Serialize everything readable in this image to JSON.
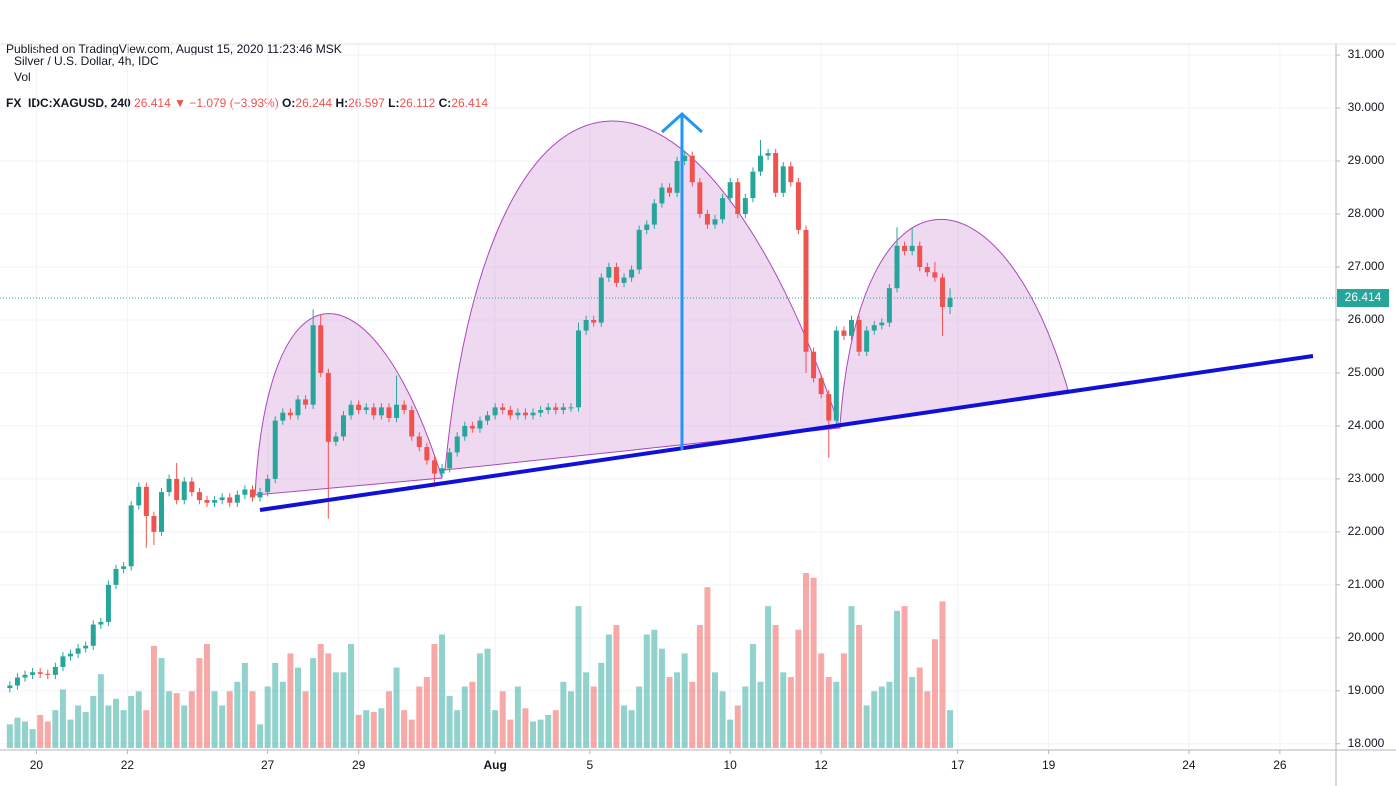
{
  "chart_data": {
    "type": "candlestick",
    "published": "Published on TradingView.com, August 15, 2020 11:23:46 MSK",
    "symbol": "FX_IDC:XAGUSD, 240",
    "change": "▼ −1.079 (−3.93%)",
    "ohlc_labels": [
      "O:",
      "H:",
      "L:",
      "C:"
    ],
    "title": "Silver / U.S. Dollar, 4h, IDC",
    "volume_label": "Vol",
    "up_color": "#26a69a",
    "down_color": "#ef5350",
    "grid": true,
    "xlim": [
      -1.3,
      174.9
    ],
    "xticks": [
      {
        "value": 3.5,
        "label": "20"
      },
      {
        "value": 15.5,
        "label": "22"
      },
      {
        "value": 34,
        "label": "27"
      },
      {
        "value": 46,
        "label": "29"
      },
      {
        "value": 64,
        "label": "Aug"
      },
      {
        "value": 76.5,
        "label": "5"
      },
      {
        "value": 95,
        "label": "10"
      },
      {
        "value": 107,
        "label": "12"
      },
      {
        "value": 125,
        "label": "17"
      },
      {
        "value": 137,
        "label": "19"
      },
      {
        "value": 155.5,
        "label": "24"
      },
      {
        "value": 167.5,
        "label": "26"
      }
    ],
    "ylim": [
      17.92,
      31.19
    ],
    "yticks": [
      {
        "value": 18,
        "label": "18.000"
      },
      {
        "value": 19,
        "label": "19.000"
      },
      {
        "value": 20,
        "label": "20.000"
      },
      {
        "value": 21,
        "label": "21.000"
      },
      {
        "value": 22,
        "label": "22.000"
      },
      {
        "value": 23,
        "label": "23.000"
      },
      {
        "value": 24,
        "label": "24.000"
      },
      {
        "value": 25,
        "label": "25.000"
      },
      {
        "value": 26,
        "label": "26.000"
      },
      {
        "value": 27,
        "label": "27.000"
      },
      {
        "value": 28,
        "label": "28.000"
      },
      {
        "value": 29,
        "label": "29.000"
      },
      {
        "value": 30,
        "label": "30.000"
      },
      {
        "value": 31,
        "label": "31.000"
      }
    ],
    "open": [
      19.05,
      19.1,
      19.25,
      19.3,
      19.35,
      19.32,
      19.3,
      19.45,
      19.65,
      19.7,
      19.8,
      19.85,
      20.25,
      20.3,
      21.0,
      21.3,
      21.35,
      22.5,
      22.85,
      22.3,
      22.0,
      22.75,
      23.0,
      22.6,
      22.95,
      22.75,
      22.6,
      22.55,
      22.6,
      22.65,
      22.55,
      22.7,
      22.8,
      22.65,
      22.75,
      23.0,
      24.1,
      24.25,
      24.2,
      24.5,
      24.4,
      25.9,
      25.0,
      23.7,
      23.8,
      24.2,
      24.4,
      24.3,
      24.35,
      24.2,
      24.35,
      24.15,
      24.4,
      24.3,
      23.8,
      23.6,
      23.35,
      23.1,
      23.2,
      23.5,
      23.8,
      24.0,
      23.95,
      24.1,
      24.2,
      24.35,
      24.3,
      24.2,
      24.25,
      24.2,
      24.25,
      24.3,
      24.35,
      24.3,
      24.35,
      24.35,
      25.8,
      26.0,
      25.95,
      26.8,
      27.0,
      26.7,
      26.8,
      26.95,
      27.7,
      27.8,
      28.2,
      28.5,
      28.4,
      29.0,
      29.1,
      28.6,
      28.0,
      27.8,
      27.9,
      28.3,
      28.6,
      28.0,
      28.3,
      28.8,
      29.1,
      29.15,
      28.4,
      28.9,
      28.6,
      27.7,
      25.4,
      24.9,
      24.6,
      24.1,
      25.8,
      25.7,
      26.0,
      25.4,
      25.8,
      25.9,
      25.95,
      26.6,
      27.4,
      27.3,
      27.4,
      27.0,
      26.9,
      26.8,
      26.244
    ],
    "high": [
      19.18,
      19.33,
      19.38,
      19.43,
      19.43,
      19.4,
      19.53,
      19.73,
      19.78,
      19.88,
      19.93,
      20.33,
      20.38,
      21.08,
      21.38,
      21.43,
      22.58,
      22.93,
      22.93,
      22.38,
      22.83,
      23.08,
      23.3,
      23.03,
      23.03,
      22.83,
      22.68,
      22.68,
      22.73,
      22.73,
      22.78,
      22.88,
      22.88,
      22.83,
      23.08,
      24.18,
      24.33,
      24.33,
      24.58,
      24.58,
      26.2,
      26.1,
      25.08,
      23.88,
      24.28,
      24.48,
      24.48,
      24.43,
      24.43,
      24.43,
      24.43,
      24.95,
      24.48,
      24.38,
      23.88,
      23.68,
      23.43,
      23.28,
      23.58,
      23.88,
      24.08,
      24.08,
      24.18,
      24.28,
      24.43,
      24.43,
      24.38,
      24.33,
      24.33,
      24.33,
      24.38,
      24.43,
      24.43,
      24.43,
      24.43,
      25.95,
      26.08,
      26.08,
      26.88,
      27.08,
      27.08,
      26.88,
      27.03,
      27.78,
      27.88,
      28.28,
      28.58,
      28.58,
      29.08,
      29.2,
      29.18,
      28.68,
      28.08,
      27.98,
      28.38,
      28.68,
      28.68,
      28.38,
      28.88,
      29.4,
      29.23,
      29.23,
      28.98,
      28.98,
      28.68,
      27.78,
      25.48,
      24.98,
      24.68,
      25.88,
      25.88,
      26.08,
      26.08,
      25.88,
      25.98,
      26.03,
      26.68,
      27.75,
      27.48,
      27.75,
      27.48,
      27.08,
      27.1,
      26.88,
      26.597
    ],
    "low": [
      18.97,
      19.02,
      19.17,
      19.22,
      19.24,
      19.22,
      19.22,
      19.37,
      19.57,
      19.62,
      19.72,
      19.77,
      20.17,
      20.22,
      20.92,
      21.22,
      21.27,
      22.42,
      21.7,
      21.75,
      21.92,
      22.67,
      22.52,
      22.52,
      22.67,
      22.52,
      22.47,
      22.47,
      22.52,
      22.47,
      22.47,
      22.62,
      22.57,
      22.57,
      22.67,
      22.92,
      24.02,
      24.12,
      24.12,
      24.32,
      24.32,
      24.92,
      22.25,
      23.62,
      23.72,
      24.12,
      24.22,
      24.22,
      24.12,
      24.12,
      24.07,
      24.07,
      24.22,
      23.72,
      23.52,
      23.27,
      22.85,
      23.02,
      23.12,
      23.42,
      23.72,
      23.87,
      23.87,
      24.02,
      24.12,
      24.22,
      24.12,
      24.12,
      24.12,
      24.12,
      24.17,
      24.22,
      24.22,
      24.22,
      24.27,
      24.27,
      25.72,
      25.87,
      25.87,
      26.72,
      26.62,
      26.62,
      26.72,
      26.87,
      27.62,
      27.72,
      28.12,
      28.32,
      28.32,
      28.92,
      28.52,
      27.92,
      27.72,
      27.72,
      27.82,
      28.22,
      27.92,
      27.92,
      28.22,
      28.72,
      29.02,
      28.32,
      28.32,
      28.52,
      27.62,
      25.0,
      24.82,
      24.52,
      23.4,
      24.02,
      25.62,
      25.62,
      25.32,
      25.32,
      25.72,
      25.82,
      25.87,
      26.52,
      27.22,
      27.22,
      26.92,
      26.82,
      26.72,
      25.7,
      26.112
    ],
    "close": [
      19.1,
      19.25,
      19.3,
      19.35,
      19.32,
      19.3,
      19.45,
      19.65,
      19.7,
      19.8,
      19.85,
      20.25,
      20.3,
      21.0,
      21.3,
      21.35,
      22.5,
      22.85,
      22.3,
      22.0,
      22.75,
      23.0,
      22.6,
      22.95,
      22.75,
      22.6,
      22.55,
      22.6,
      22.65,
      22.55,
      22.7,
      22.8,
      22.65,
      22.75,
      23.0,
      24.1,
      24.25,
      24.2,
      24.5,
      24.4,
      25.9,
      25.0,
      23.7,
      23.8,
      24.2,
      24.4,
      24.3,
      24.35,
      24.2,
      24.35,
      24.15,
      24.4,
      24.3,
      23.8,
      23.6,
      23.35,
      23.1,
      23.2,
      23.5,
      23.8,
      24.0,
      23.95,
      24.1,
      24.2,
      24.35,
      24.3,
      24.2,
      24.25,
      24.2,
      24.25,
      24.3,
      24.35,
      24.3,
      24.35,
      24.35,
      25.8,
      26.0,
      25.95,
      26.8,
      27.0,
      26.7,
      26.8,
      26.95,
      27.7,
      27.8,
      28.2,
      28.5,
      28.4,
      29.0,
      29.1,
      28.6,
      28.0,
      27.8,
      27.9,
      28.3,
      28.6,
      28.0,
      28.3,
      28.8,
      29.1,
      29.15,
      28.4,
      28.9,
      28.6,
      27.7,
      25.4,
      24.9,
      24.6,
      24.1,
      25.8,
      25.7,
      26.0,
      25.4,
      25.8,
      25.9,
      25.95,
      26.6,
      27.4,
      27.3,
      27.4,
      27.0,
      26.9,
      26.8,
      26.244,
      26.414
    ],
    "volume": [
      25,
      32,
      28,
      20,
      35,
      28,
      40,
      62,
      30,
      45,
      38,
      55,
      78,
      45,
      52,
      40,
      55,
      60,
      40,
      108,
      95,
      60,
      58,
      45,
      60,
      95,
      110,
      60,
      45,
      60,
      70,
      90,
      60,
      25,
      65,
      90,
      70,
      100,
      85,
      60,
      95,
      110,
      100,
      80,
      80,
      110,
      35,
      40,
      38,
      42,
      60,
      85,
      40,
      30,
      65,
      75,
      110,
      120,
      55,
      40,
      65,
      70,
      100,
      105,
      40,
      60,
      30,
      65,
      42,
      28,
      30,
      35,
      40,
      70,
      60,
      150,
      80,
      65,
      90,
      120,
      130,
      45,
      40,
      65,
      120,
      125,
      105,
      75,
      80,
      100,
      70,
      130,
      170,
      80,
      60,
      30,
      45,
      65,
      110,
      70,
      150,
      130,
      80,
      75,
      125,
      185,
      180,
      100,
      75,
      70,
      100,
      150,
      130,
      45,
      60,
      65,
      70,
      145,
      150,
      75,
      85,
      60,
      115,
      155,
      40
    ]
  }
}
